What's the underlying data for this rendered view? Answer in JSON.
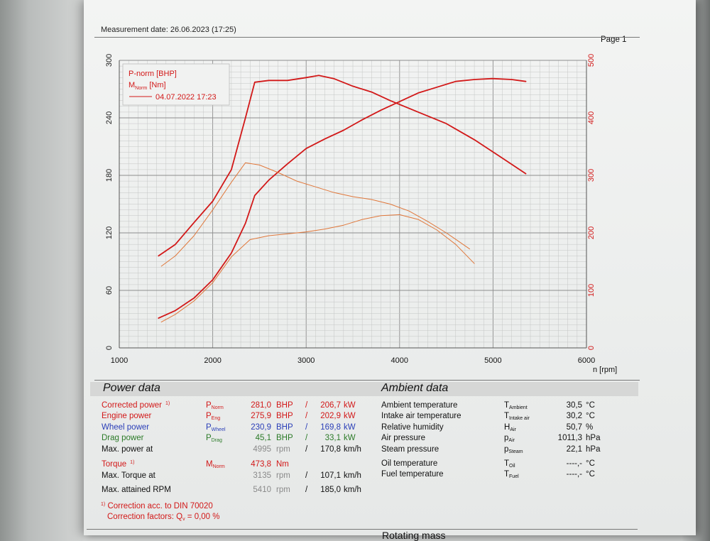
{
  "header": {
    "measurement_date": "Measurement date: 26.06.2023 (17:25)",
    "page": "Page 1"
  },
  "colors": {
    "red": "#d21818",
    "blue": "#2a3eb8",
    "green": "#2b7a28",
    "curve_old": "#e0773a"
  },
  "chart_data": {
    "type": "line",
    "xlabel": "n [rpm]",
    "x_ticks": [
      "1000",
      "2000",
      "3000",
      "4000",
      "5000",
      "6000"
    ],
    "xlim": [
      1000,
      6000
    ],
    "y_left_ticks": [
      "0",
      "60",
      "120",
      "180",
      "240",
      "300"
    ],
    "ylim_left": [
      0,
      300
    ],
    "y_right_ticks": [
      "0",
      "100",
      "200",
      "300",
      "400",
      "500"
    ],
    "ylim_right": [
      0,
      500
    ],
    "grid": true,
    "legend_placement": "top-left",
    "legend": {
      "line1": "P-norm [BHP]",
      "line2_main": "M",
      "line2_sub": "Norm",
      "line2_unit": " [Nm]",
      "line3": "04.07.2022 17:23"
    },
    "series": [
      {
        "name": "P-norm [BHP]",
        "axis": "left",
        "color": "#d21818",
        "width": 1.8,
        "x": [
          1420,
          1600,
          1800,
          2000,
          2200,
          2350,
          2450,
          2600,
          2800,
          3000,
          3200,
          3400,
          3600,
          3800,
          4000,
          4200,
          4400,
          4600,
          4800,
          4995,
          5200,
          5350
        ],
        "y": [
          31,
          39,
          52,
          71,
          99,
          130,
          159,
          175,
          192,
          208,
          218,
          227,
          238,
          248,
          257,
          266,
          272,
          278,
          280,
          281,
          280,
          278
        ]
      },
      {
        "name": "M Norm [Nm]",
        "axis": "right",
        "color": "#d21818",
        "width": 1.8,
        "x": [
          1420,
          1600,
          1800,
          2000,
          2200,
          2350,
          2450,
          2600,
          2800,
          3000,
          3135,
          3300,
          3500,
          3700,
          3900,
          4200,
          4500,
          4800,
          5100,
          5350
        ],
        "y": [
          160,
          180,
          218,
          255,
          310,
          400,
          462,
          465,
          465,
          470,
          473.8,
          468,
          455,
          445,
          430,
          410,
          390,
          362,
          330,
          303
        ]
      },
      {
        "name": "04.07.2022 17:23",
        "axis": "left",
        "color": "#e0773a",
        "width": 1.0,
        "x": [
          1450,
          1600,
          1800,
          2000,
          2200,
          2400,
          2600,
          2800,
          3000,
          3200,
          3400,
          3600,
          3800,
          4000,
          4200,
          4400,
          4600,
          4800
        ],
        "y": [
          27,
          35,
          49,
          68,
          95,
          113,
          117,
          119,
          121,
          124,
          128,
          134,
          138,
          139,
          134,
          123,
          108,
          88
        ]
      },
      {
        "name": "04.07.2022 17:23",
        "axis": "right",
        "color": "#e0773a",
        "width": 1.0,
        "x": [
          1450,
          1600,
          1800,
          2000,
          2200,
          2350,
          2500,
          2700,
          2900,
          3100,
          3300,
          3500,
          3700,
          3900,
          4100,
          4300,
          4500,
          4750
        ],
        "y": [
          142,
          160,
          195,
          240,
          288,
          322,
          318,
          305,
          290,
          280,
          270,
          263,
          258,
          250,
          238,
          220,
          200,
          172
        ]
      }
    ]
  },
  "power_data": {
    "title": "Power data",
    "rows": [
      {
        "label": "Corrected power",
        "footnote": "1)",
        "sym": "P",
        "sym_sub": "Norm",
        "val1": "281,0",
        "unit1": "BHP",
        "sep": "/",
        "val2": "206,7",
        "unit2": "kW"
      },
      {
        "label": "Engine power",
        "footnote": "",
        "sym": "P",
        "sym_sub": "Eng",
        "val1": "275,9",
        "unit1": "BHP",
        "sep": "/",
        "val2": "202,9",
        "unit2": "kW"
      },
      {
        "label": "Wheel power",
        "footnote": "",
        "sym": "P",
        "sym_sub": "Wheel",
        "val1": "230,9",
        "unit1": "BHP",
        "sep": "/",
        "val2": "169,8",
        "unit2": "kW"
      },
      {
        "label": "Drag power",
        "footnote": "",
        "sym": "P",
        "sym_sub": "Drag",
        "val1": "45,1",
        "unit1": "BHP",
        "sep": "/",
        "val2": "33,1",
        "unit2": "kW"
      },
      {
        "label": "Max. power at",
        "footnote": "",
        "sym": "",
        "sym_sub": "",
        "val1": "4995",
        "unit1": "rpm",
        "sep": "/",
        "val2": "170,8",
        "unit2": "km/h"
      },
      {
        "label": "Torque",
        "footnote": "1)",
        "sym": "M",
        "sym_sub": "Norm",
        "val1": "473,8",
        "unit1": "Nm",
        "sep": "",
        "val2": "",
        "unit2": ""
      },
      {
        "label": "Max. Torque at",
        "footnote": "",
        "sym": "",
        "sym_sub": "",
        "val1": "3135",
        "unit1": "rpm",
        "sep": "/",
        "val2": "107,1",
        "unit2": "km/h"
      },
      {
        "label": "Max. attained RPM",
        "footnote": "",
        "sym": "",
        "sym_sub": "",
        "val1": "5410",
        "unit1": "rpm",
        "sep": "/",
        "val2": "185,0",
        "unit2": "km/h"
      }
    ],
    "footnote_mark": "1)",
    "footnote_text": "Correction acc. to DIN 70020",
    "factors_label": "Correction factors: Q",
    "factors_sub": "v",
    "factors_value": " =   0,00 %"
  },
  "ambient_data": {
    "title": "Ambient data",
    "rows": [
      {
        "label": "Ambient temperature",
        "sym": "T",
        "sym_sub": "Ambient",
        "value": "30,5",
        "unit": "°C"
      },
      {
        "label": "Intake air temperature",
        "sym": "T",
        "sym_sub": "Intake air",
        "value": "30,2",
        "unit": "°C"
      },
      {
        "label": "Relative humidity",
        "sym": "H",
        "sym_sub": "Air",
        "value": "50,7",
        "unit": "%"
      },
      {
        "label": "Air pressure",
        "sym": "p",
        "sym_sub": "Air",
        "value": "1011,3",
        "unit": "hPa"
      },
      {
        "label": "Steam pressure",
        "sym": "p",
        "sym_sub": "Steam",
        "value": "22,1",
        "unit": "hPa"
      },
      {
        "label": "Oil temperature",
        "sym": "T",
        "sym_sub": "Oil",
        "value": "----,-",
        "unit": "°C"
      },
      {
        "label": "Fuel temperature",
        "sym": "T",
        "sym_sub": "Fuel",
        "value": "----,-",
        "unit": "°C"
      }
    ]
  },
  "next_section_partial": "Rotating mass"
}
